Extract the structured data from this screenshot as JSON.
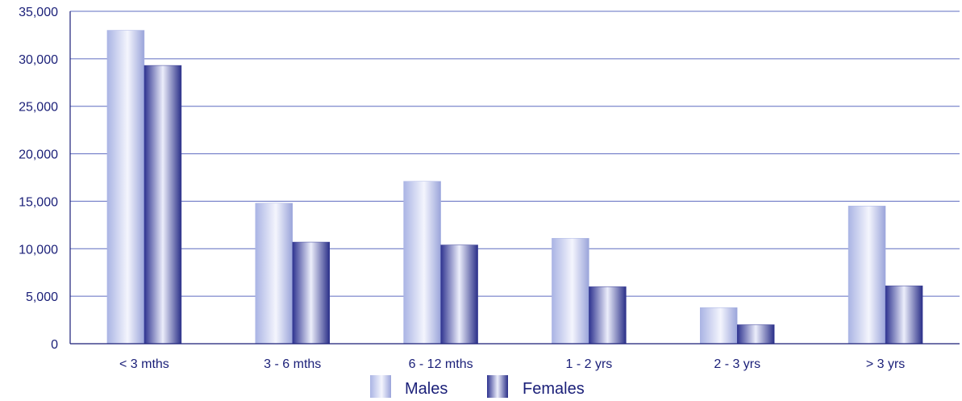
{
  "chart_data": {
    "type": "bar",
    "categories": [
      "< 3 mths",
      "3 - 6 mths",
      "6 - 12 mths",
      "1 - 2 yrs",
      "2 - 3 yrs",
      "> 3 yrs"
    ],
    "series": [
      {
        "name": "Males",
        "values": [
          33000,
          14800,
          17100,
          11100,
          3800,
          14500
        ]
      },
      {
        "name": "Females",
        "values": [
          29300,
          10700,
          10400,
          6000,
          2000,
          6100
        ]
      }
    ],
    "ylim": [
      0,
      35000
    ],
    "yticks": [
      0,
      5000,
      10000,
      15000,
      20000,
      25000,
      30000,
      35000
    ],
    "ytick_labels": [
      "0",
      "5,000",
      "10,000",
      "15,000",
      "20,000",
      "25,000",
      "30,000",
      "35,000"
    ],
    "grid": true,
    "legend_position": "bottom-center",
    "title": "",
    "xlabel": "",
    "ylabel": ""
  },
  "colors": {
    "males": "#aab4e4",
    "females": "#3a3f98",
    "axis": "#1a1f78",
    "grid": "#5f6cc0",
    "text": "#1a1f78"
  }
}
